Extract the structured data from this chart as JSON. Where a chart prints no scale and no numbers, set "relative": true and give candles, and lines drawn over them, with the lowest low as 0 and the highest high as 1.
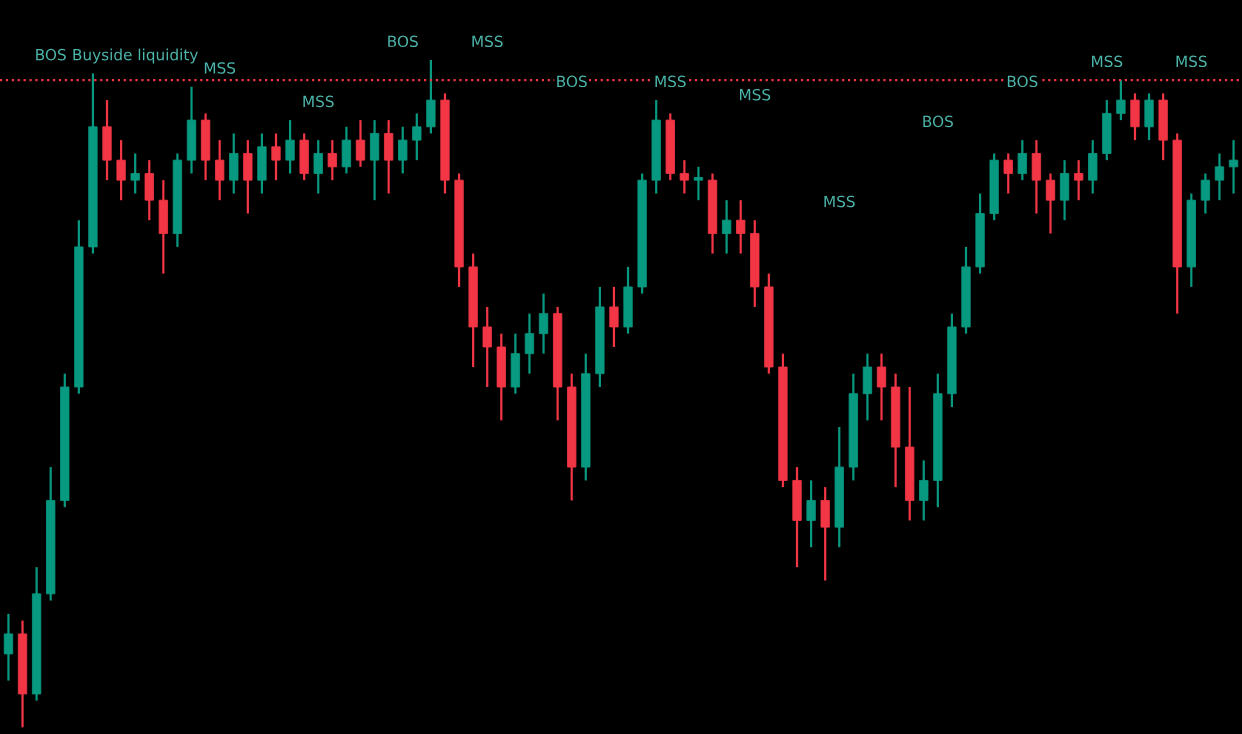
{
  "chart_data": {
    "type": "candlestick",
    "relative": true,
    "categories": [
      null,
      null,
      null,
      null,
      null,
      null,
      null,
      null,
      null,
      null,
      null,
      null,
      null,
      null,
      null,
      null,
      null,
      null,
      null,
      null,
      null,
      null,
      null,
      null,
      null,
      null,
      null,
      null,
      null,
      null,
      null,
      null,
      null,
      null,
      null,
      null,
      null,
      null,
      null,
      null,
      null,
      null,
      null,
      null,
      null,
      null,
      null,
      null,
      null,
      null,
      null,
      null,
      null,
      null,
      null,
      null,
      null,
      null,
      null,
      null,
      null,
      null,
      null,
      null,
      null,
      null,
      null,
      null,
      null,
      null,
      null,
      null,
      null,
      null,
      null,
      null,
      null,
      null,
      null,
      null,
      null,
      null,
      null,
      null,
      null,
      null,
      null,
      null
    ],
    "ohlc": [
      [
        0.11,
        0.17,
        0.07,
        0.14
      ],
      [
        0.14,
        0.16,
        0,
        0.05
      ],
      [
        0.05,
        0.24,
        0.04,
        0.2
      ],
      [
        0.2,
        0.39,
        0.19,
        0.34
      ],
      [
        0.34,
        0.53,
        0.33,
        0.51
      ],
      [
        0.51,
        0.76,
        0.5,
        0.72
      ],
      [
        0.72,
        0.98,
        0.71,
        0.9
      ],
      [
        0.9,
        0.94,
        0.82,
        0.85
      ],
      [
        0.85,
        0.88,
        0.79,
        0.82
      ],
      [
        0.82,
        0.86,
        0.8,
        0.83
      ],
      [
        0.83,
        0.85,
        0.76,
        0.79
      ],
      [
        0.79,
        0.82,
        0.68,
        0.74
      ],
      [
        0.74,
        0.86,
        0.72,
        0.85
      ],
      [
        0.85,
        0.96,
        0.83,
        0.91
      ],
      [
        0.91,
        0.92,
        0.82,
        0.85
      ],
      [
        0.85,
        0.88,
        0.79,
        0.82
      ],
      [
        0.82,
        0.89,
        0.8,
        0.86
      ],
      [
        0.86,
        0.88,
        0.77,
        0.82
      ],
      [
        0.82,
        0.89,
        0.8,
        0.87
      ],
      [
        0.87,
        0.89,
        0.82,
        0.85
      ],
      [
        0.85,
        0.91,
        0.83,
        0.88
      ],
      [
        0.88,
        0.89,
        0.82,
        0.83
      ],
      [
        0.83,
        0.88,
        0.8,
        0.86
      ],
      [
        0.86,
        0.88,
        0.82,
        0.84
      ],
      [
        0.84,
        0.9,
        0.83,
        0.88
      ],
      [
        0.88,
        0.91,
        0.84,
        0.85
      ],
      [
        0.85,
        0.91,
        0.79,
        0.89
      ],
      [
        0.89,
        0.91,
        0.8,
        0.85
      ],
      [
        0.85,
        0.9,
        0.83,
        0.88
      ],
      [
        0.88,
        0.92,
        0.85,
        0.9
      ],
      [
        0.9,
        1.0,
        0.89,
        0.94
      ],
      [
        0.94,
        0.95,
        0.8,
        0.82
      ],
      [
        0.82,
        0.83,
        0.66,
        0.69
      ],
      [
        0.69,
        0.71,
        0.54,
        0.6
      ],
      [
        0.6,
        0.63,
        0.51,
        0.57
      ],
      [
        0.57,
        0.59,
        0.46,
        0.51
      ],
      [
        0.51,
        0.59,
        0.5,
        0.56
      ],
      [
        0.56,
        0.62,
        0.53,
        0.59
      ],
      [
        0.59,
        0.65,
        0.56,
        0.62
      ],
      [
        0.62,
        0.63,
        0.46,
        0.51
      ],
      [
        0.51,
        0.53,
        0.34,
        0.39
      ],
      [
        0.39,
        0.56,
        0.37,
        0.53
      ],
      [
        0.53,
        0.66,
        0.51,
        0.63
      ],
      [
        0.63,
        0.66,
        0.57,
        0.6
      ],
      [
        0.6,
        0.69,
        0.59,
        0.66
      ],
      [
        0.66,
        0.83,
        0.65,
        0.82
      ],
      [
        0.82,
        0.94,
        0.8,
        0.91
      ],
      [
        0.91,
        0.92,
        0.82,
        0.83
      ],
      [
        0.83,
        0.85,
        0.8,
        0.82
      ],
      [
        0.82,
        0.84,
        0.79,
        0.82
      ],
      [
        0.82,
        0.83,
        0.71,
        0.74
      ],
      [
        0.74,
        0.79,
        0.71,
        0.76
      ],
      [
        0.76,
        0.79,
        0.71,
        0.74
      ],
      [
        0.74,
        0.76,
        0.63,
        0.66
      ],
      [
        0.66,
        0.68,
        0.53,
        0.54
      ],
      [
        0.54,
        0.56,
        0.36,
        0.37
      ],
      [
        0.37,
        0.39,
        0.24,
        0.31
      ],
      [
        0.31,
        0.37,
        0.27,
        0.34
      ],
      [
        0.34,
        0.36,
        0.22,
        0.3
      ],
      [
        0.3,
        0.45,
        0.27,
        0.39
      ],
      [
        0.39,
        0.53,
        0.37,
        0.5
      ],
      [
        0.5,
        0.56,
        0.46,
        0.54
      ],
      [
        0.54,
        0.56,
        0.46,
        0.51
      ],
      [
        0.51,
        0.53,
        0.36,
        0.42
      ],
      [
        0.42,
        0.51,
        0.31,
        0.34
      ],
      [
        0.34,
        0.4,
        0.31,
        0.37
      ],
      [
        0.37,
        0.53,
        0.33,
        0.5
      ],
      [
        0.5,
        0.62,
        0.48,
        0.6
      ],
      [
        0.6,
        0.72,
        0.59,
        0.69
      ],
      [
        0.69,
        0.8,
        0.68,
        0.77
      ],
      [
        0.77,
        0.86,
        0.76,
        0.85
      ],
      [
        0.85,
        0.86,
        0.8,
        0.83
      ],
      [
        0.83,
        0.88,
        0.82,
        0.86
      ],
      [
        0.86,
        0.88,
        0.77,
        0.82
      ],
      [
        0.82,
        0.83,
        0.74,
        0.79
      ],
      [
        0.79,
        0.85,
        0.76,
        0.83
      ],
      [
        0.83,
        0.85,
        0.79,
        0.82
      ],
      [
        0.82,
        0.88,
        0.8,
        0.86
      ],
      [
        0.86,
        0.94,
        0.85,
        0.92
      ],
      [
        0.92,
        0.97,
        0.91,
        0.94
      ],
      [
        0.94,
        0.95,
        0.88,
        0.9
      ],
      [
        0.9,
        0.95,
        0.88,
        0.94
      ],
      [
        0.94,
        0.95,
        0.85,
        0.88
      ],
      [
        0.88,
        0.89,
        0.62,
        0.69
      ],
      [
        0.69,
        0.8,
        0.66,
        0.79
      ],
      [
        0.79,
        0.83,
        0.77,
        0.82
      ],
      [
        0.82,
        0.86,
        0.79,
        0.84
      ],
      [
        0.84,
        0.88,
        0.8,
        0.85
      ]
    ],
    "colors": [
      "#089981",
      "#f23645",
      "#089981",
      "#089981",
      "#089981",
      "#089981",
      "#089981",
      "#f23645",
      "#f23645",
      "#089981",
      "#f23645",
      "#f23645",
      "#089981",
      "#089981",
      "#f23645",
      "#f23645",
      "#089981",
      "#f23645",
      "#089981",
      "#f23645",
      "#089981",
      "#f23645",
      "#089981",
      "#f23645",
      "#089981",
      "#f23645",
      "#089981",
      "#f23645",
      "#089981",
      "#089981",
      "#089981",
      "#f23645",
      "#f23645",
      "#f23645",
      "#f23645",
      "#f23645",
      "#089981",
      "#089981",
      "#089981",
      "#f23645",
      "#f23645",
      "#089981",
      "#089981",
      "#f23645",
      "#089981",
      "#089981",
      "#089981",
      "#f23645",
      "#f23645",
      "#089981",
      "#f23645",
      "#089981",
      "#f23645",
      "#f23645",
      "#f23645",
      "#f23645",
      "#f23645",
      "#089981",
      "#f23645",
      "#089981",
      "#089981",
      "#089981",
      "#f23645",
      "#f23645",
      "#f23645",
      "#089981",
      "#089981",
      "#089981",
      "#089981",
      "#089981",
      "#089981",
      "#f23645",
      "#089981",
      "#f23645",
      "#f23645",
      "#089981",
      "#f23645",
      "#089981",
      "#089981",
      "#089981",
      "#f23645",
      "#089981",
      "#f23645",
      "#f23645",
      "#089981",
      "#089981",
      "#089981",
      "#089981"
    ],
    "ref_lines": [
      {
        "axis": "y",
        "value": 0.97,
        "label": null,
        "color": "#f23645",
        "line_style": "dotted"
      }
    ],
    "annotations": [
      "BOS",
      "Buyside liquidity",
      "MSS",
      "MSS",
      "BOS",
      "MSS",
      "BOS",
      "MSS",
      "MSS",
      "MSS",
      "BOS",
      "BOS",
      "MSS",
      "MSS"
    ],
    "grid": false,
    "legend": false
  }
}
